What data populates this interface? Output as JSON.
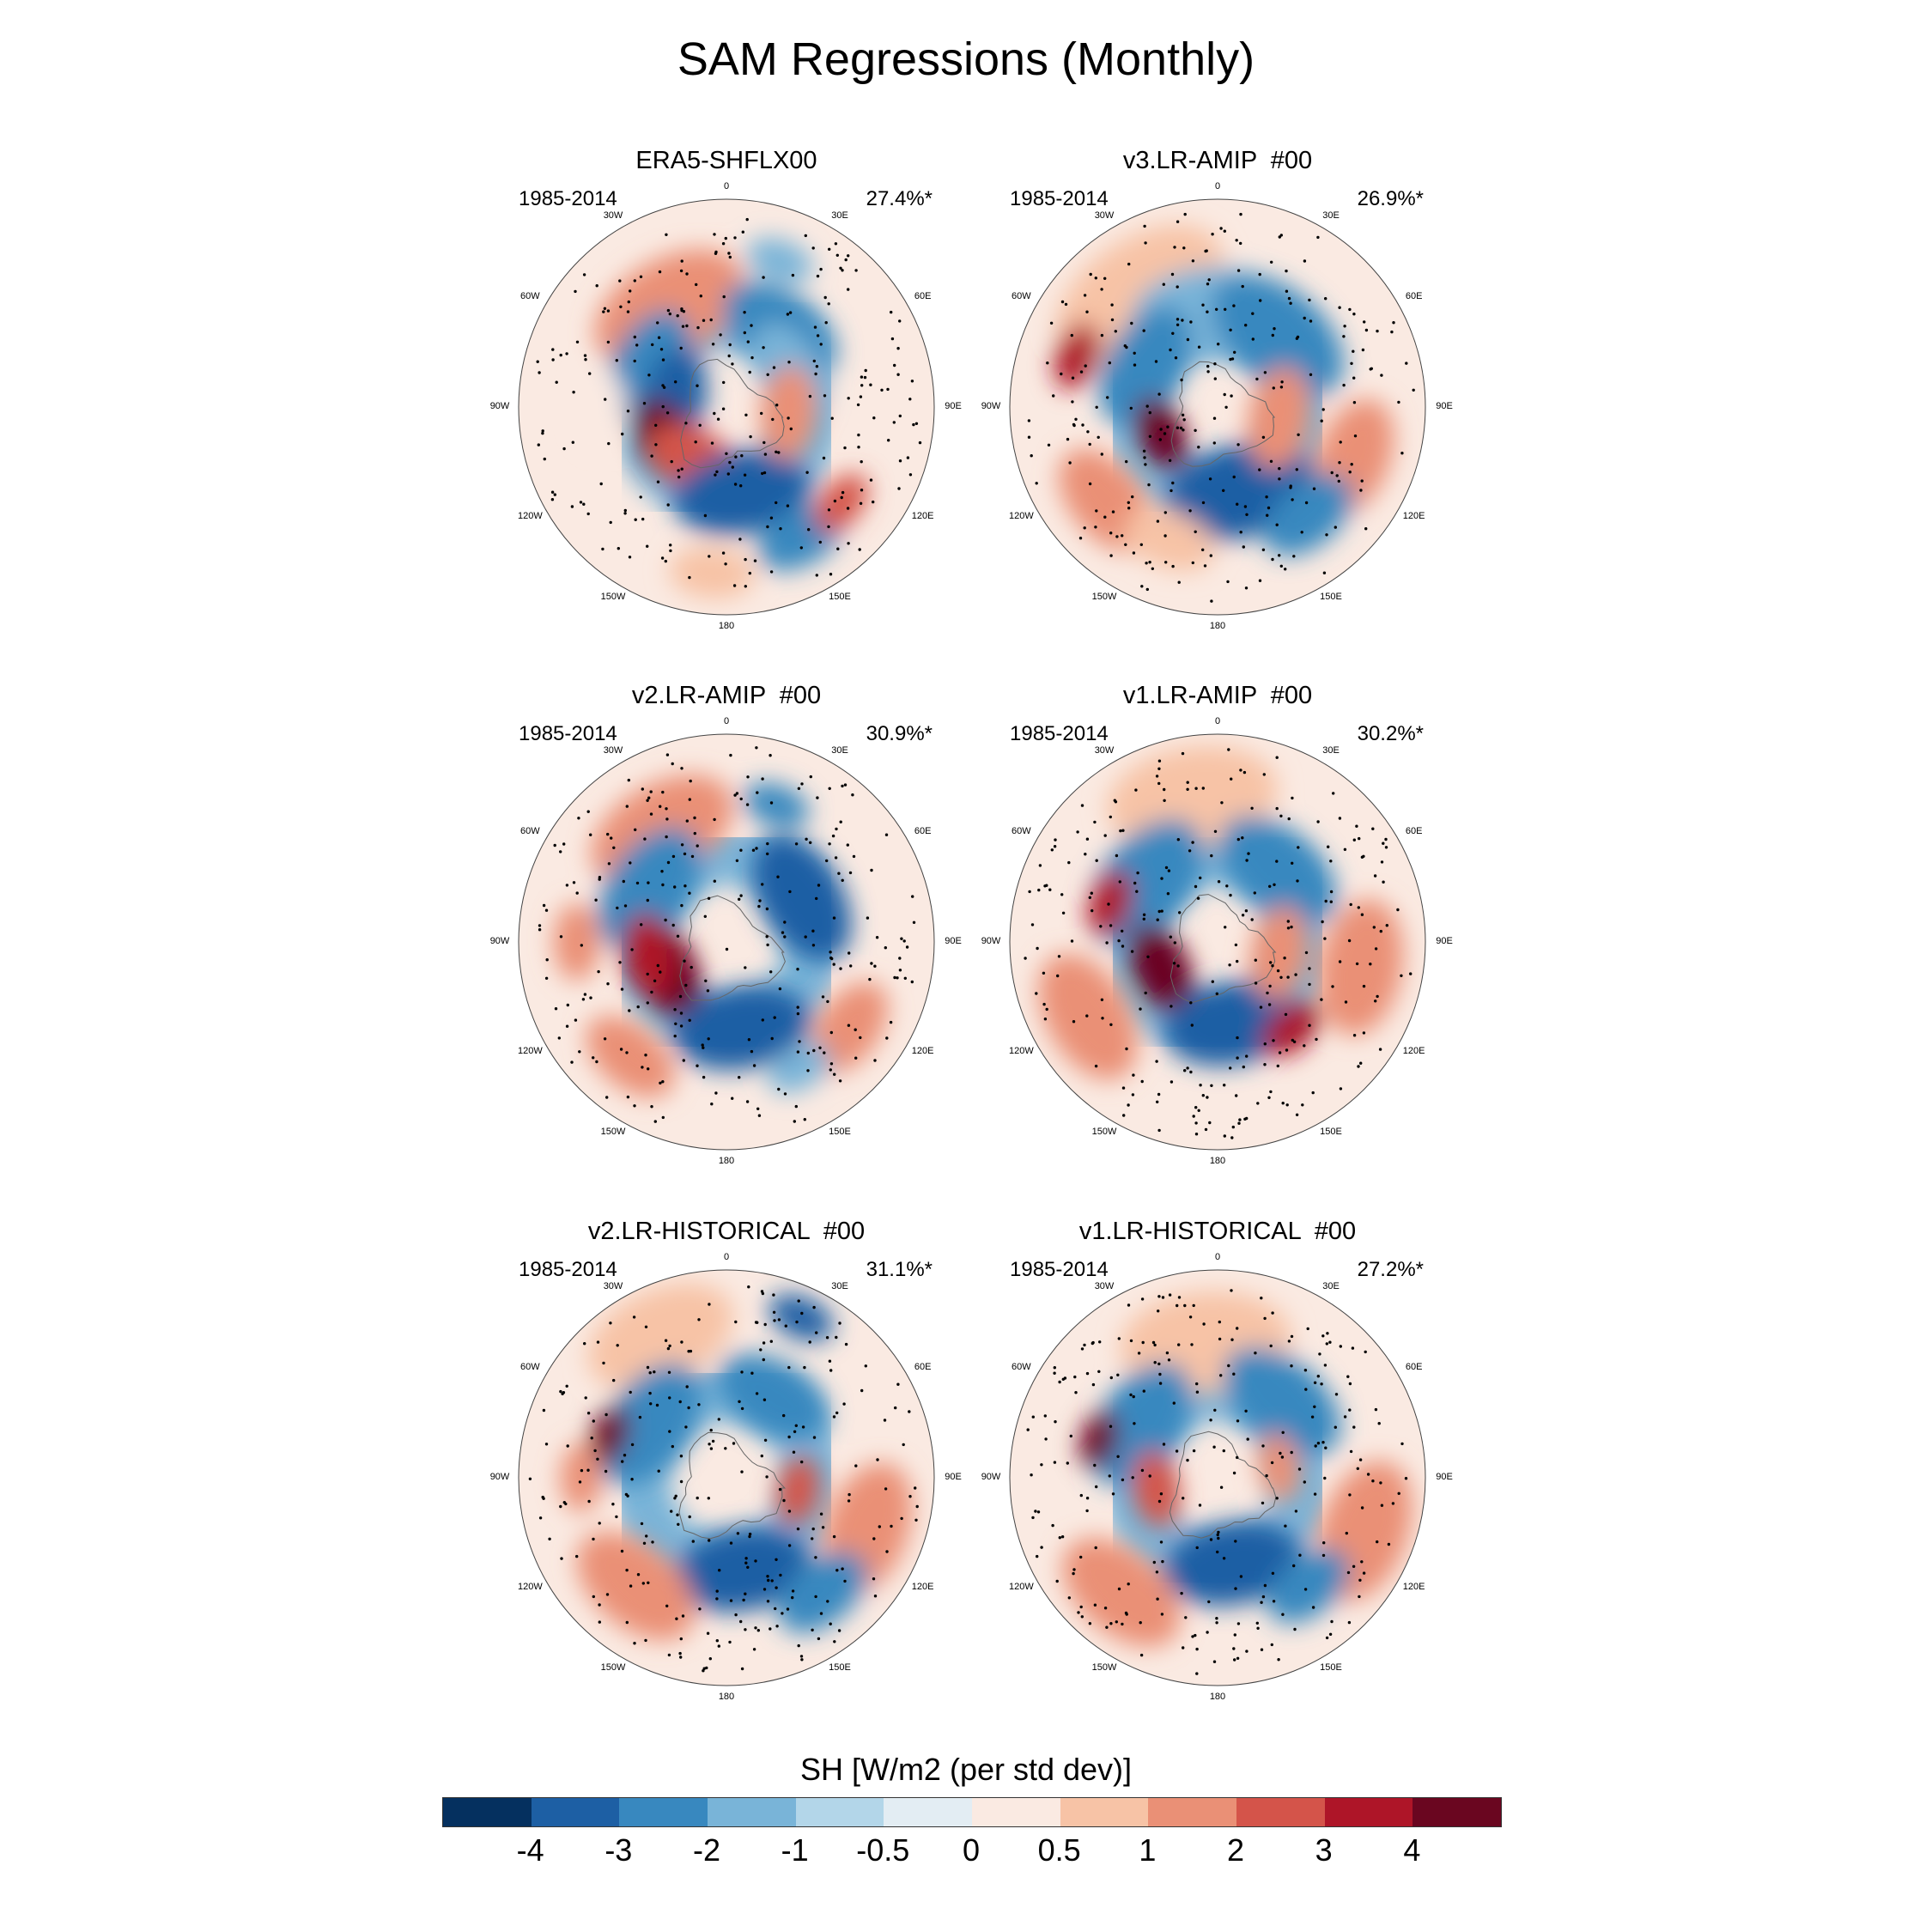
{
  "title": "SAM Regressions (Monthly)",
  "colorbar": {
    "title": "SH [W/m2 (per std dev)]",
    "colors": [
      "#05305f",
      "#1d5fa4",
      "#3888bf",
      "#79b4d8",
      "#b3d6e9",
      "#e3edf3",
      "#faeae2",
      "#f7c3a6",
      "#ea9076",
      "#d4544a",
      "#ae1528",
      "#6a0620"
    ],
    "labels": [
      "-4",
      "-3",
      "-2",
      "-1",
      "-0.5",
      "0",
      "0.5",
      "1",
      "2",
      "3",
      "4"
    ]
  },
  "lon_labels": [
    "0",
    "30E",
    "60E",
    "90E",
    "120E",
    "150E",
    "180",
    "150W",
    "120W",
    "90W",
    "60W",
    "30W"
  ],
  "panels": [
    {
      "title": "ERA5-SHFLX00",
      "years": "1985-2014",
      "pct": "27.4%*"
    },
    {
      "title": "v3.LR-AMIP  #00",
      "years": "1985-2014",
      "pct": "26.9%*"
    },
    {
      "title": "v2.LR-AMIP  #00",
      "years": "1985-2014",
      "pct": "30.9%*"
    },
    {
      "title": "v1.LR-AMIP  #00",
      "years": "1985-2014",
      "pct": "30.2%*"
    },
    {
      "title": "v2.LR-HISTORICAL  #00",
      "years": "1985-2014",
      "pct": "31.1%*"
    },
    {
      "title": "v1.LR-HISTORICAL  #00",
      "years": "1985-2014",
      "pct": "27.2%*"
    }
  ]
}
